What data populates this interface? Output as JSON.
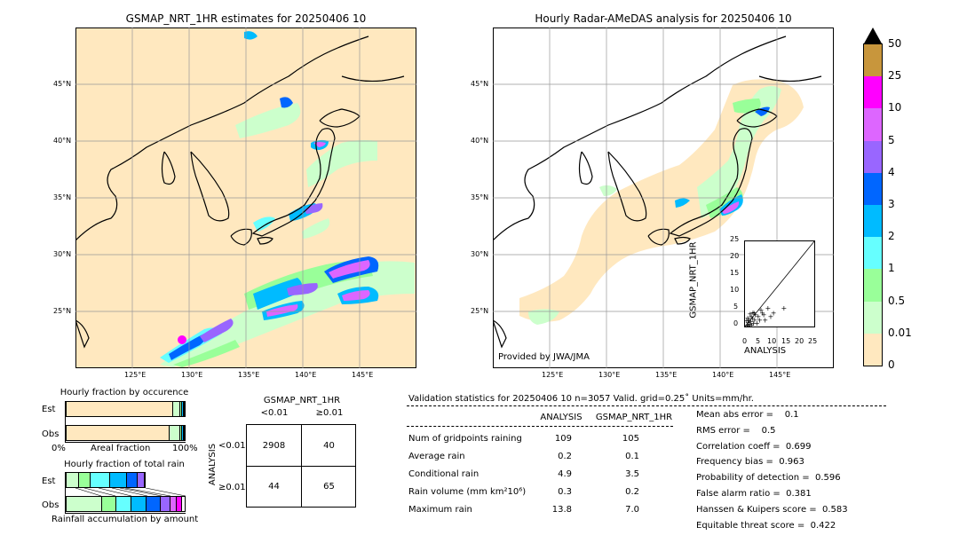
{
  "left_map": {
    "title": "GSMAP_NRT_1HR estimates for 20250406 10",
    "lon_ticks": [
      "125°E",
      "130°E",
      "135°E",
      "140°E",
      "145°E"
    ],
    "lat_ticks": [
      "45°N",
      "40°N",
      "35°N",
      "30°N",
      "25°N"
    ]
  },
  "right_map": {
    "title": "Hourly Radar-AMeDAS analysis for 20250406 10",
    "credit": "Provided by JWA/JMA",
    "lon_ticks": [
      "125°E",
      "130°E",
      "135°E",
      "140°E",
      "145°E"
    ],
    "lat_ticks": [
      "45°N",
      "40°N",
      "35°N",
      "30°N",
      "25°N"
    ]
  },
  "colorbar": {
    "labels": [
      "50",
      "25",
      "10",
      "5",
      "4",
      "3",
      "2",
      "1",
      "0.5",
      "0.01",
      "0"
    ],
    "colors": [
      "#c8963c",
      "#ff00ff",
      "#dd66ff",
      "#9966ff",
      "#0066ff",
      "#00bbff",
      "#66ffff",
      "#99ff99",
      "#ccffcc",
      "#ffe8bf"
    ]
  },
  "scatter": {
    "xlabel": "ANALYSIS",
    "ylabel": "GSMAP_NRT_1HR",
    "x_ticks": [
      "0",
      "5",
      "10",
      "15",
      "20",
      "25"
    ],
    "y_ticks": [
      "0",
      "5",
      "10",
      "15",
      "20",
      "25"
    ]
  },
  "occurrence": {
    "title": "Hourly fraction by occurence",
    "rows": [
      "Est",
      "Obs"
    ],
    "xlabel": "Areal fraction",
    "x_left": "0%",
    "x_right": "100%"
  },
  "total_rain": {
    "title": "Hourly fraction of total rain",
    "rows": [
      "Est",
      "Obs"
    ],
    "xlabel": "Rainfall accumulation by amount"
  },
  "contingency": {
    "title": "GSMAP_NRT_1HR",
    "col_headers": [
      "<0.01",
      "≥0.01"
    ],
    "row_label": "ANALYSIS",
    "row_headers": [
      "<0.01",
      "≥0.01"
    ],
    "cells": [
      "2908",
      "40",
      "44",
      "65"
    ]
  },
  "validation": {
    "header": "Validation statistics for 20250406 10  n=3057 Valid. grid=0.25˚ Units=mm/hr.",
    "col_analysis": "ANALYSIS",
    "col_gsmap": "GSMAP_NRT_1HR",
    "rows": [
      {
        "label": "Num of gridpoints raining",
        "analysis": "109",
        "gsmap": "105"
      },
      {
        "label": "Average rain",
        "analysis": "0.2",
        "gsmap": "0.1"
      },
      {
        "label": "Conditional rain",
        "analysis": "4.9",
        "gsmap": "3.5"
      },
      {
        "label": "Rain volume (mm km²10⁶)",
        "analysis": "0.3",
        "gsmap": "0.2"
      },
      {
        "label": "Maximum rain",
        "analysis": "13.8",
        "gsmap": "7.0"
      }
    ],
    "scores": [
      "Mean abs error =    0.1",
      "RMS error =    0.5",
      "Correlation coeff =  0.699",
      "Frequency bias =  0.963",
      "Probability of detection =  0.596",
      "False alarm ratio =  0.381",
      "Hanssen & Kuipers score =  0.583",
      "Equitable threat score =  0.422"
    ]
  },
  "chart_data": [
    {
      "type": "heatmap",
      "title": "GSMAP_NRT_1HR estimates for 20250406 10",
      "xlim": [
        120,
        150
      ],
      "ylim": [
        20,
        50
      ]
    },
    {
      "type": "heatmap",
      "title": "Hourly Radar-AMeDAS analysis for 20250406 10",
      "xlim": [
        120,
        150
      ],
      "ylim": [
        20,
        50
      ]
    },
    {
      "type": "scatter",
      "xlabel": "ANALYSIS",
      "ylabel": "GSMAP_NRT_1HR",
      "xlim": [
        0,
        25
      ],
      "ylim": [
        0,
        25
      ],
      "points": [
        [
          0.5,
          0.4
        ],
        [
          0.8,
          1.2
        ],
        [
          1.0,
          0.3
        ],
        [
          1.2,
          2.0
        ],
        [
          1.5,
          0.8
        ],
        [
          1.8,
          1.5
        ],
        [
          2.0,
          3.0
        ],
        [
          2.2,
          0.5
        ],
        [
          2.5,
          2.5
        ],
        [
          2.8,
          1.0
        ],
        [
          3.0,
          4.0
        ],
        [
          3.2,
          2.0
        ],
        [
          3.5,
          3.5
        ],
        [
          4.0,
          1.0
        ],
        [
          4.5,
          3.0
        ],
        [
          5.0,
          2.0
        ],
        [
          5.5,
          5.0
        ],
        [
          6.0,
          4.0
        ],
        [
          6.5,
          3.5
        ],
        [
          7.0,
          2.0
        ],
        [
          8.0,
          5.5
        ],
        [
          9.0,
          3.0
        ],
        [
          10.0,
          4.0
        ],
        [
          13.8,
          5.5
        ],
        [
          0.3,
          1.8
        ],
        [
          1.6,
          3.8
        ],
        [
          2.6,
          4.2
        ],
        [
          0.7,
          2.6
        ]
      ]
    },
    {
      "type": "bar",
      "title": "Hourly fraction by occurence",
      "categories": [
        "Est",
        "Obs"
      ],
      "series": [
        {
          "values": [
            0.9,
            0.87
          ]
        },
        {
          "values": [
            0.06,
            0.09
          ]
        },
        {
          "values": [
            0.02,
            0.02
          ]
        },
        {
          "values": [
            0.01,
            0.01
          ]
        },
        {
          "values": [
            0.01,
            0.01
          ]
        }
      ]
    },
    {
      "type": "bar",
      "title": "Hourly fraction of total rain",
      "categories": [
        "Est",
        "Obs"
      ],
      "series": [
        {
          "values": [
            0.12,
            0.3
          ]
        },
        {
          "values": [
            0.11,
            0.12
          ]
        },
        {
          "values": [
            0.18,
            0.13
          ]
        },
        {
          "values": [
            0.16,
            0.13
          ]
        },
        {
          "values": [
            0.1,
            0.12
          ]
        },
        {
          "values": [
            0.07,
            0.08
          ]
        },
        {
          "values": [
            0.0,
            0.05
          ]
        },
        {
          "values": [
            0.0,
            0.05
          ]
        }
      ]
    }
  ]
}
